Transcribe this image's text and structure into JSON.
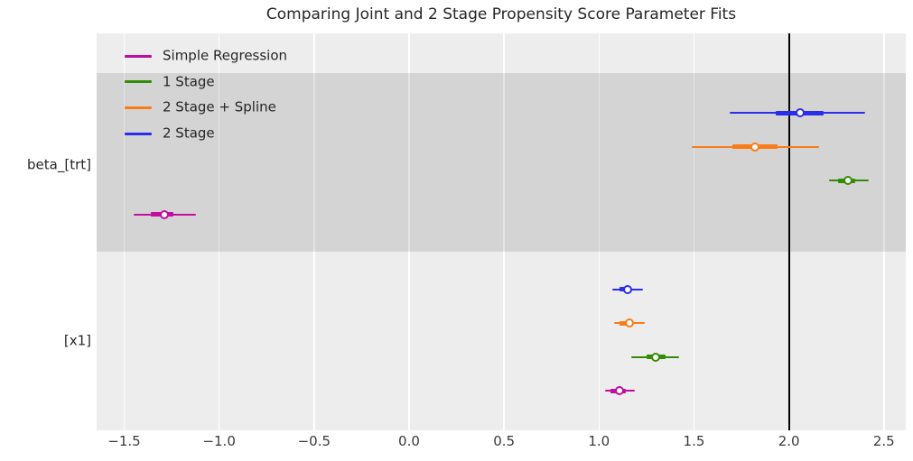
{
  "chart_data": {
    "type": "forest",
    "title": "Comparing Joint and 2 Stage Propensity Score Parameter Fits",
    "x_axis": {
      "min": -1.645,
      "max": 2.615,
      "ticks": [
        -1.5,
        -1.0,
        -0.5,
        0.0,
        0.5,
        1.0,
        1.5,
        2.0,
        2.5
      ],
      "tick_labels": [
        "−1.5",
        "−1.0",
        "−0.5",
        "0.0",
        "0.5",
        "1.0",
        "1.5",
        "2.0",
        "2.5"
      ]
    },
    "reference_line": {
      "x": 2.0,
      "color": "#000000"
    },
    "background": {
      "plot": "#ededed",
      "shaded_band": "rgba(0,0,0,0.105)",
      "gridline": "#ffffff"
    },
    "legend": {
      "position": "upper-left",
      "items": [
        {
          "label": "Simple Regression",
          "color": "#c10ea0"
        },
        {
          "label": "1 Stage",
          "color": "#328c06"
        },
        {
          "label": "2 Stage + Spline",
          "color": "#fa7c17"
        },
        {
          "label": "2 Stage",
          "color": "#2a2eec"
        }
      ]
    },
    "groups": [
      {
        "label": "beta_[trt]",
        "shaded": true,
        "rows": [
          {
            "series": "2 Stage",
            "color": "#2a2eec",
            "point": 2.06,
            "hdi_inner": [
              1.93,
              2.18
            ],
            "hdi_outer": [
              1.69,
              2.4
            ]
          },
          {
            "series": "2 Stage + Spline",
            "color": "#fa7c17",
            "point": 1.82,
            "hdi_inner": [
              1.7,
              1.94
            ],
            "hdi_outer": [
              1.49,
              2.16
            ]
          },
          {
            "series": "1 Stage",
            "color": "#328c06",
            "point": 2.31,
            "hdi_inner": [
              2.26,
              2.35
            ],
            "hdi_outer": [
              2.21,
              2.42
            ]
          },
          {
            "series": "Simple Regression",
            "color": "#c10ea0",
            "point": -1.29,
            "hdi_inner": [
              -1.36,
              -1.24
            ],
            "hdi_outer": [
              -1.45,
              -1.12
            ]
          }
        ]
      },
      {
        "label": "[x1]",
        "shaded": false,
        "rows": [
          {
            "series": "2 Stage",
            "color": "#2a2eec",
            "point": 1.15,
            "hdi_inner": [
              1.11,
              1.17
            ],
            "hdi_outer": [
              1.07,
              1.23
            ]
          },
          {
            "series": "2 Stage + Spline",
            "color": "#fa7c17",
            "point": 1.16,
            "hdi_inner": [
              1.11,
              1.18
            ],
            "hdi_outer": [
              1.08,
              1.24
            ]
          },
          {
            "series": "1 Stage",
            "color": "#328c06",
            "point": 1.3,
            "hdi_inner": [
              1.25,
              1.35
            ],
            "hdi_outer": [
              1.17,
              1.42
            ]
          },
          {
            "series": "Simple Regression",
            "color": "#c10ea0",
            "point": 1.11,
            "hdi_inner": [
              1.06,
              1.14
            ],
            "hdi_outer": [
              1.03,
              1.19
            ]
          }
        ]
      }
    ]
  }
}
